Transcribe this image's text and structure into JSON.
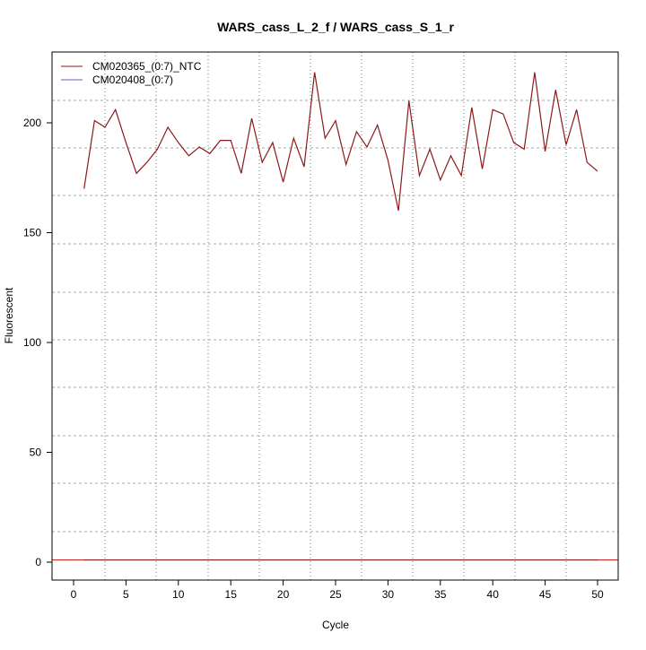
{
  "chart_data": {
    "type": "line",
    "title": "WARS_cass_L_2_f / WARS_cass_S_1_r",
    "xlabel": "Cycle",
    "ylabel": "Fluorescent",
    "xlim": [
      -2,
      52
    ],
    "ylim": [
      -8,
      232
    ],
    "xticks": [
      0,
      5,
      10,
      15,
      20,
      25,
      30,
      35,
      40,
      45,
      50
    ],
    "yticks": [
      0,
      50,
      100,
      150,
      200
    ],
    "grid": true,
    "legend_placement": "top-left",
    "series": [
      {
        "name": "CM020365_(0:7)_NTC",
        "color": "#8b1a1a",
        "x": [
          1,
          2,
          3,
          4,
          5,
          6,
          7,
          8,
          9,
          10,
          11,
          12,
          13,
          14,
          15,
          16,
          17,
          18,
          19,
          20,
          21,
          22,
          23,
          24,
          25,
          26,
          27,
          28,
          29,
          30,
          31,
          32,
          33,
          34,
          35,
          36,
          37,
          38,
          39,
          40,
          41,
          42,
          43,
          44,
          45,
          46,
          47,
          48,
          49,
          50
        ],
        "values": [
          170,
          201,
          198,
          206,
          191,
          177,
          182,
          188,
          198,
          191,
          185,
          189,
          186,
          192,
          192,
          177,
          202,
          182,
          191,
          173,
          193,
          180,
          223,
          193,
          201,
          181,
          196,
          189,
          199,
          183,
          160,
          210,
          176,
          188,
          174,
          185,
          176,
          207,
          179,
          206,
          204,
          191,
          188,
          223,
          187,
          215,
          190,
          206,
          182,
          178
        ]
      },
      {
        "name": "CM020408_(0:7)",
        "color": "#6a5acd",
        "x": [
          1,
          50
        ],
        "values": [
          1,
          1
        ]
      }
    ],
    "baseline": {
      "value": 1,
      "color": "#cc2222"
    }
  }
}
